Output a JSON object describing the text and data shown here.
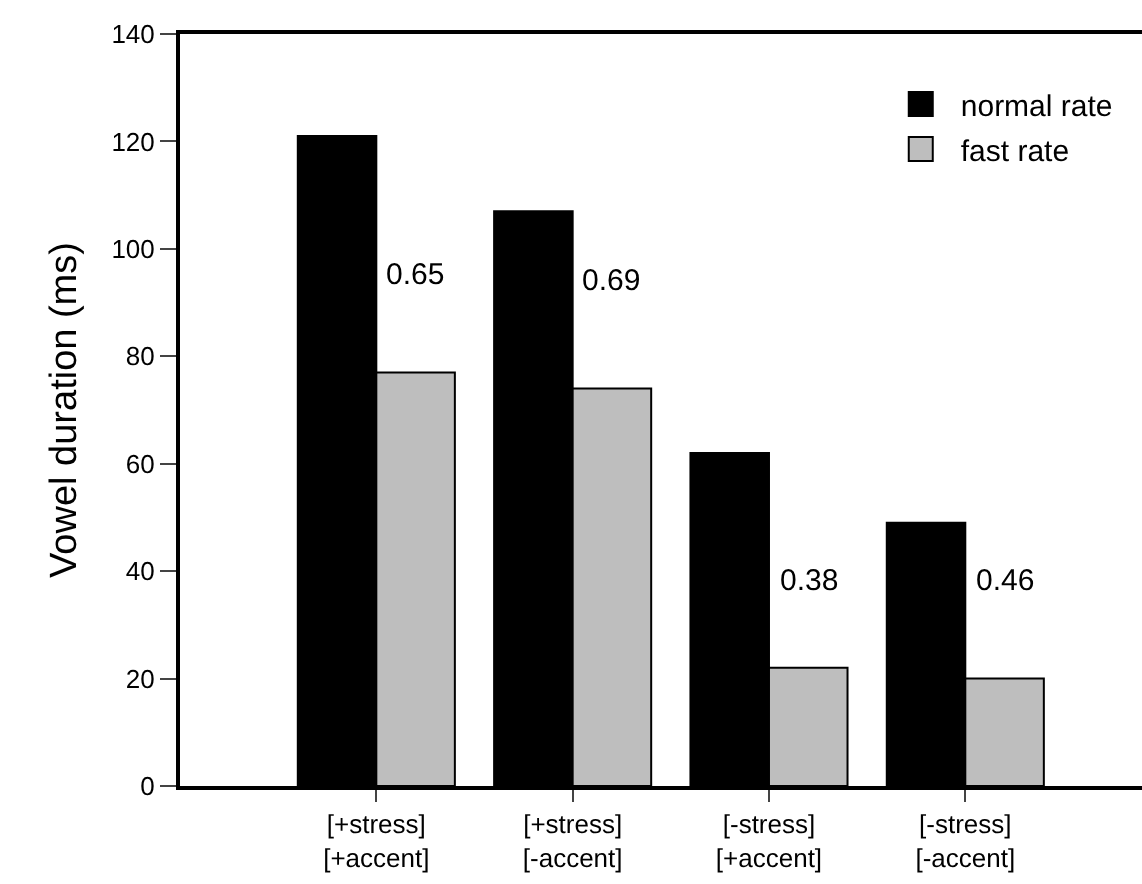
{
  "chart_data": {
    "type": "bar",
    "ylabel": "Vowel duration (ms)",
    "categories": [
      "[+stress]\n[+accent]",
      "[+stress]\n[-accent]",
      "[-stress]\n[+accent]",
      "[-stress]\n[-accent]"
    ],
    "series": [
      {
        "name": "normal rate",
        "color": "#000000",
        "values": [
          121,
          107,
          62,
          49
        ]
      },
      {
        "name": "fast rate",
        "color": "#bebebe",
        "values": [
          77,
          74,
          22,
          20
        ]
      }
    ],
    "ylim": [
      0,
      140
    ],
    "yticks": [
      0,
      20,
      40,
      60,
      80,
      100,
      120,
      140
    ],
    "grid": false,
    "legend": "top right",
    "annotations": [
      {
        "text": "0.65",
        "x": "[+stress]\n[+accent]",
        "y": 95
      },
      {
        "text": "0.69",
        "x": "[+stress]\n[-accent]",
        "y": 94
      },
      {
        "text": "0.38",
        "x": "[-stress]\n[+accent]",
        "y": 38
      },
      {
        "text": "0.46",
        "x": "[-stress]\n[-accent]",
        "y": 38
      }
    ]
  }
}
